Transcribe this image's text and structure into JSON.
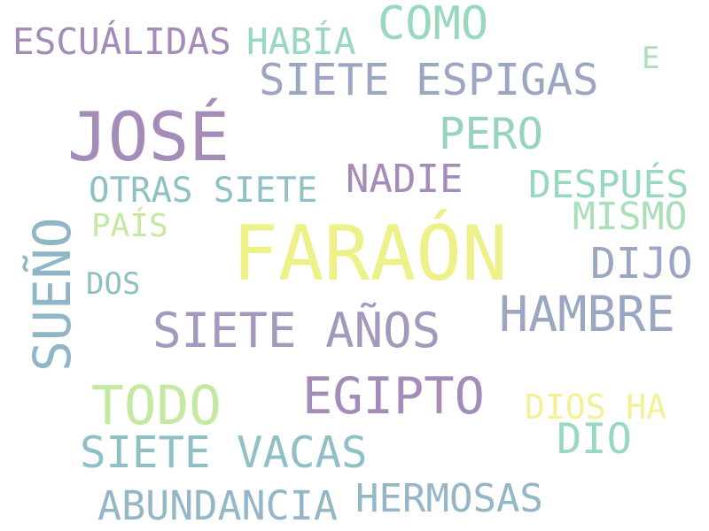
{
  "words": {
    "faraon": "FARAÓN",
    "jose": "JOSÉ",
    "sueno": "SUEÑO",
    "siete_anos": "SIETE AÑOS",
    "hambre": "HAMBRE",
    "egipto": "EGIPTO",
    "todo": "TODO",
    "siete_espigas": "SIETE ESPIGAS",
    "siete_vacas": "SIETE VACAS",
    "como": "COMO",
    "pero": "PERO",
    "abundancia": "ABUNDANCIA",
    "hermosas": "HERMOSAS",
    "escualidas": "ESCUÁLIDAS",
    "habia": "HABÍA",
    "nadie": "NADIE",
    "otras_siete": "OTRAS SIETE",
    "despues": "DESPUÉS",
    "mismo": "MISMO",
    "dijo": "DIJO",
    "dio": "DIO",
    "dios_ha": "DIOS HA",
    "pais": "PAÍS",
    "dos": "DOS",
    "e": "E"
  },
  "colors": {
    "yellow": "#eef08a",
    "purple": "#a48bb8",
    "blue_gray": "#9ba7c2",
    "teal": "#8fc0c6",
    "mint": "#98d8bd",
    "light_green": "#c5e8a3",
    "light_yellow": "#f3f097"
  }
}
